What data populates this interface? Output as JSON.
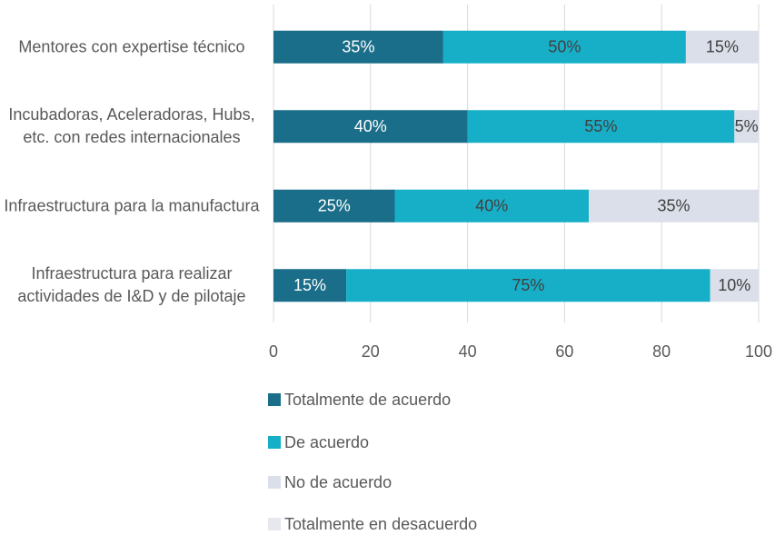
{
  "chart_data": {
    "type": "stacked-bar-horizontal",
    "categories": [
      "Mentores con expertise técnico",
      "Incubadoras, Aceleradoras, Hubs, etc. con redes internacionales",
      "Infraestructura para la manufactura",
      "Infraestructura para realizar actividades de I&D y de pilotaje"
    ],
    "series": [
      {
        "name": "Totalmente de acuerdo",
        "color": "#1a6e89",
        "values": [
          35,
          40,
          25,
          15
        ],
        "value_labels": [
          "35%",
          "40%",
          "25%",
          "15%"
        ]
      },
      {
        "name": "De acuerdo",
        "color": "#17afc8",
        "values": [
          50,
          55,
          40,
          75
        ],
        "value_labels": [
          "50%",
          "55%",
          "40%",
          "75%"
        ]
      },
      {
        "name": "No de acuerdo",
        "color": "#dadfe9",
        "values": [
          15,
          5,
          35,
          10
        ],
        "value_labels": [
          "15%",
          "5%",
          "35%",
          "10%"
        ]
      },
      {
        "name": "Totalmente en desacuerdo",
        "color": "#e6e8ee",
        "values": [
          0,
          0,
          0,
          0
        ]
      }
    ],
    "xlim": [
      0,
      100
    ],
    "xticks": [
      0,
      20,
      40,
      60,
      80,
      100
    ],
    "grid": true,
    "legend": "bottom"
  }
}
